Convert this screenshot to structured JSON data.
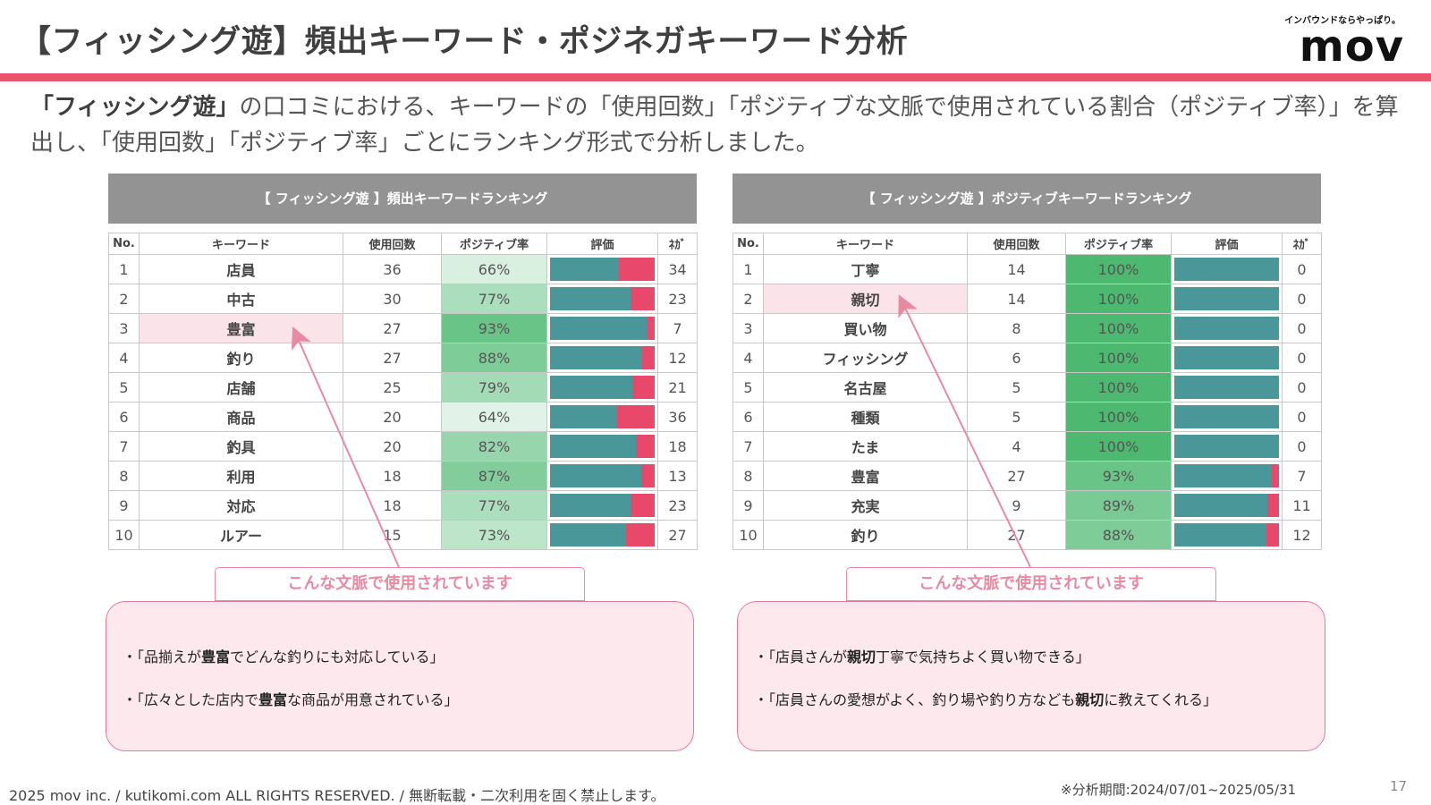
{
  "title": "【フィッシング遊】頻出キーワード・ポジネガキーワード分析",
  "logo": {
    "tagline": "インバウンドならやっぱり。",
    "name": "mov"
  },
  "intro": {
    "store": "「フィッシング遊」",
    "text": "の口コミにおける、キーワードの「使用回数」「ポジティブな文脈で使用されている割合（ポジティブ率）」を算出し、「使用回数」「ポジティブ率」ごとにランキング形式で分析しました。"
  },
  "columns": {
    "no": "No.",
    "keyword": "キーワード",
    "count": "使用回数",
    "rate": "ポジティブ率",
    "eval": "評価",
    "nega": "ﾈｶﾞ"
  },
  "colors": {
    "accent": "#e9546b",
    "positive": "#4a9799",
    "negative": "#e8486a",
    "highlight": "#fbe3ea",
    "callout": "#fde8ee"
  },
  "freq_table": {
    "heading": "【 フィッシング遊 】頻出キーワードランキング",
    "rows": [
      {
        "no": "1",
        "keyword": "店員",
        "count": "36",
        "rate": "66%",
        "rate_value": 0.66,
        "nega": "34"
      },
      {
        "no": "2",
        "keyword": "中古",
        "count": "30",
        "rate": "77%",
        "rate_value": 0.77,
        "nega": "23"
      },
      {
        "no": "3",
        "keyword": "豊富",
        "count": "27",
        "rate": "93%",
        "rate_value": 0.93,
        "nega": "7",
        "highlight": true
      },
      {
        "no": "4",
        "keyword": "釣り",
        "count": "27",
        "rate": "88%",
        "rate_value": 0.88,
        "nega": "12"
      },
      {
        "no": "5",
        "keyword": "店舗",
        "count": "25",
        "rate": "79%",
        "rate_value": 0.79,
        "nega": "21"
      },
      {
        "no": "6",
        "keyword": "商品",
        "count": "20",
        "rate": "64%",
        "rate_value": 0.64,
        "nega": "36"
      },
      {
        "no": "7",
        "keyword": "釣具",
        "count": "20",
        "rate": "82%",
        "rate_value": 0.82,
        "nega": "18"
      },
      {
        "no": "8",
        "keyword": "利用",
        "count": "18",
        "rate": "87%",
        "rate_value": 0.87,
        "nega": "13"
      },
      {
        "no": "9",
        "keyword": "対応",
        "count": "18",
        "rate": "77%",
        "rate_value": 0.77,
        "nega": "23"
      },
      {
        "no": "10",
        "keyword": "ルアー",
        "count": "15",
        "rate": "73%",
        "rate_value": 0.73,
        "nega": "27"
      }
    ]
  },
  "pos_table": {
    "heading": "【 フィッシング遊 】ポジティブキーワードランキング",
    "rows": [
      {
        "no": "1",
        "keyword": "丁寧",
        "count": "14",
        "rate": "100%",
        "rate_value": 1.0,
        "nega": "0"
      },
      {
        "no": "2",
        "keyword": "親切",
        "count": "14",
        "rate": "100%",
        "rate_value": 1.0,
        "nega": "0",
        "highlight": true
      },
      {
        "no": "3",
        "keyword": "買い物",
        "count": "8",
        "rate": "100%",
        "rate_value": 1.0,
        "nega": "0"
      },
      {
        "no": "4",
        "keyword": "フィッシング",
        "count": "6",
        "rate": "100%",
        "rate_value": 1.0,
        "nega": "0"
      },
      {
        "no": "5",
        "keyword": "名古屋",
        "count": "5",
        "rate": "100%",
        "rate_value": 1.0,
        "nega": "0"
      },
      {
        "no": "6",
        "keyword": "種類",
        "count": "5",
        "rate": "100%",
        "rate_value": 1.0,
        "nega": "0"
      },
      {
        "no": "7",
        "keyword": "たま",
        "count": "4",
        "rate": "100%",
        "rate_value": 1.0,
        "nega": "0"
      },
      {
        "no": "8",
        "keyword": "豊富",
        "count": "27",
        "rate": "93%",
        "rate_value": 0.93,
        "nega": "7"
      },
      {
        "no": "9",
        "keyword": "充実",
        "count": "9",
        "rate": "89%",
        "rate_value": 0.89,
        "nega": "11"
      },
      {
        "no": "10",
        "keyword": "釣り",
        "count": "27",
        "rate": "88%",
        "rate_value": 0.88,
        "nega": "12"
      }
    ]
  },
  "callouts": {
    "left": {
      "label": "こんな文脈で使用されています",
      "lines": [
        {
          "pre": "・「品揃えが",
          "kw": "豊富",
          "post": "でどんな釣りにも対応している」"
        },
        {
          "pre": "・「広々とした店内で",
          "kw": "豊富",
          "post": "な商品が用意されている」"
        }
      ]
    },
    "right": {
      "label": "こんな文脈で使用されています",
      "lines": [
        {
          "pre": "・「店員さんが",
          "kw": "親切",
          "post": "丁寧で気持ちよく買い物できる」"
        },
        {
          "pre": "・「店員さんの愛想がよく、釣り場や釣り方なども",
          "kw": "親切",
          "post": "に教えてくれる」"
        }
      ]
    }
  },
  "footer": {
    "copyright": "2025 mov inc. / kutikomi.com ALL RIGHTS RESERVED. / 無断転載・二次利用を固く禁止します。",
    "period": "※分析期間:2024/07/01~2025/05/31",
    "page": "17"
  }
}
